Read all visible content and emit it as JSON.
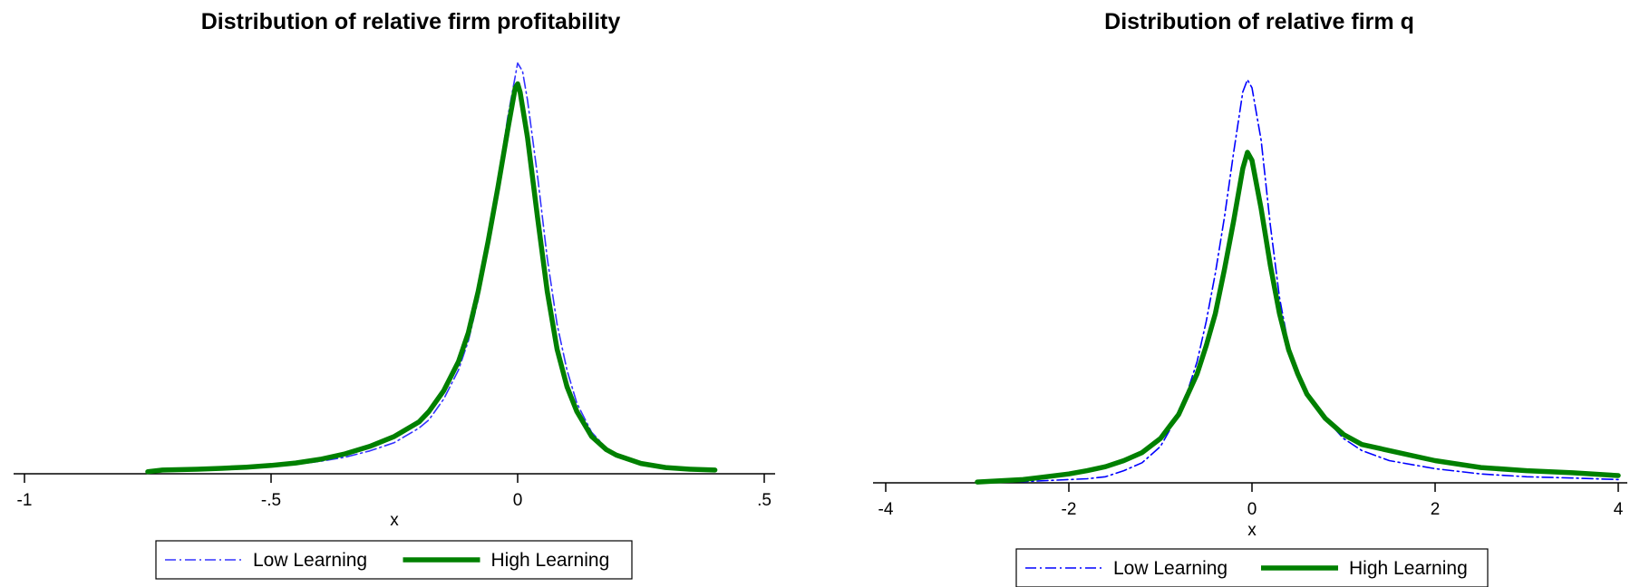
{
  "chart_data": [
    {
      "type": "line",
      "title": "Distribution of relative firm profitability",
      "xlabel": "x",
      "ylabel": "",
      "xlim": [
        -1.0,
        0.5
      ],
      "ylim": [
        0,
        1
      ],
      "xticks": [
        -1,
        -0.5,
        0,
        0.5
      ],
      "xtick_labels": [
        "-1",
        "-.5",
        "0",
        ".5"
      ],
      "y_axis_shown": false,
      "grid": false,
      "legend_position": "bottom",
      "series": [
        {
          "name": "Low Learning",
          "color": "#3333ff",
          "style": "dash-dot-thin",
          "points": [
            [
              -0.75,
              0.005
            ],
            [
              -0.7,
              0.007
            ],
            [
              -0.65,
              0.009
            ],
            [
              -0.6,
              0.011
            ],
            [
              -0.55,
              0.014
            ],
            [
              -0.5,
              0.018
            ],
            [
              -0.45,
              0.023
            ],
            [
              -0.4,
              0.03
            ],
            [
              -0.35,
              0.04
            ],
            [
              -0.3,
              0.055
            ],
            [
              -0.25,
              0.075
            ],
            [
              -0.2,
              0.11
            ],
            [
              -0.18,
              0.13
            ],
            [
              -0.15,
              0.18
            ],
            [
              -0.12,
              0.25
            ],
            [
              -0.1,
              0.32
            ],
            [
              -0.08,
              0.42
            ],
            [
              -0.06,
              0.55
            ],
            [
              -0.04,
              0.7
            ],
            [
              -0.02,
              0.86
            ],
            [
              0.0,
              0.99
            ],
            [
              0.01,
              0.97
            ],
            [
              0.02,
              0.9
            ],
            [
              0.04,
              0.72
            ],
            [
              0.06,
              0.52
            ],
            [
              0.08,
              0.36
            ],
            [
              0.1,
              0.25
            ],
            [
              0.12,
              0.17
            ],
            [
              0.15,
              0.1
            ],
            [
              0.18,
              0.062
            ],
            [
              0.2,
              0.047
            ],
            [
              0.25,
              0.026
            ],
            [
              0.3,
              0.016
            ],
            [
              0.35,
              0.012
            ],
            [
              0.4,
              0.01
            ]
          ]
        },
        {
          "name": "High Learning",
          "color": "#008000",
          "style": "solid-thick",
          "points": [
            [
              -0.75,
              0.005
            ],
            [
              -0.72,
              0.009
            ],
            [
              -0.65,
              0.011
            ],
            [
              -0.6,
              0.013
            ],
            [
              -0.55,
              0.016
            ],
            [
              -0.5,
              0.02
            ],
            [
              -0.45,
              0.026
            ],
            [
              -0.4,
              0.035
            ],
            [
              -0.35,
              0.048
            ],
            [
              -0.3,
              0.066
            ],
            [
              -0.25,
              0.09
            ],
            [
              -0.2,
              0.125
            ],
            [
              -0.18,
              0.15
            ],
            [
              -0.15,
              0.2
            ],
            [
              -0.12,
              0.27
            ],
            [
              -0.1,
              0.34
            ],
            [
              -0.08,
              0.44
            ],
            [
              -0.06,
              0.56
            ],
            [
              -0.04,
              0.69
            ],
            [
              -0.02,
              0.83
            ],
            [
              -0.005,
              0.93
            ],
            [
              0.0,
              0.94
            ],
            [
              0.005,
              0.92
            ],
            [
              0.02,
              0.81
            ],
            [
              0.04,
              0.62
            ],
            [
              0.06,
              0.44
            ],
            [
              0.08,
              0.3
            ],
            [
              0.1,
              0.21
            ],
            [
              0.12,
              0.15
            ],
            [
              0.15,
              0.09
            ],
            [
              0.18,
              0.058
            ],
            [
              0.2,
              0.045
            ],
            [
              0.25,
              0.025
            ],
            [
              0.3,
              0.015
            ],
            [
              0.35,
              0.011
            ],
            [
              0.4,
              0.009
            ]
          ]
        }
      ]
    },
    {
      "type": "line",
      "title": "Distribution of relative firm q",
      "xlabel": "x",
      "ylabel": "",
      "xlim": [
        -4,
        4
      ],
      "ylim": [
        0,
        1
      ],
      "xticks": [
        -4,
        -2,
        0,
        2,
        4
      ],
      "xtick_labels": [
        "-4",
        "-2",
        "0",
        "2",
        "4"
      ],
      "y_axis_shown": false,
      "grid": false,
      "legend_position": "bottom",
      "series": [
        {
          "name": "Low Learning",
          "color": "#0000ff",
          "style": "dash-dot-thin",
          "points": [
            [
              -3.0,
              0.002
            ],
            [
              -2.5,
              0.003
            ],
            [
              -2.0,
              0.008
            ],
            [
              -1.8,
              0.01
            ],
            [
              -1.6,
              0.015
            ],
            [
              -1.4,
              0.03
            ],
            [
              -1.2,
              0.05
            ],
            [
              -1.0,
              0.09
            ],
            [
              -0.9,
              0.13
            ],
            [
              -0.8,
              0.18
            ],
            [
              -0.7,
              0.23
            ],
            [
              -0.6,
              0.3
            ],
            [
              -0.5,
              0.4
            ],
            [
              -0.4,
              0.52
            ],
            [
              -0.3,
              0.66
            ],
            [
              -0.2,
              0.82
            ],
            [
              -0.1,
              0.97
            ],
            [
              -0.05,
              1.0
            ],
            [
              0.0,
              0.98
            ],
            [
              0.1,
              0.85
            ],
            [
              0.2,
              0.64
            ],
            [
              0.3,
              0.46
            ],
            [
              0.4,
              0.34
            ],
            [
              0.5,
              0.26
            ],
            [
              0.6,
              0.22
            ],
            [
              0.8,
              0.16
            ],
            [
              1.0,
              0.11
            ],
            [
              1.2,
              0.08
            ],
            [
              1.5,
              0.055
            ],
            [
              2.0,
              0.035
            ],
            [
              2.5,
              0.022
            ],
            [
              3.0,
              0.015
            ],
            [
              3.5,
              0.012
            ],
            [
              4.0,
              0.008
            ]
          ]
        },
        {
          "name": "High Learning",
          "color": "#008000",
          "style": "solid-thick",
          "points": [
            [
              -3.0,
              0.002
            ],
            [
              -2.5,
              0.008
            ],
            [
              -2.0,
              0.022
            ],
            [
              -1.8,
              0.03
            ],
            [
              -1.6,
              0.04
            ],
            [
              -1.4,
              0.055
            ],
            [
              -1.2,
              0.075
            ],
            [
              -1.0,
              0.11
            ],
            [
              -0.9,
              0.14
            ],
            [
              -0.8,
              0.17
            ],
            [
              -0.7,
              0.22
            ],
            [
              -0.6,
              0.27
            ],
            [
              -0.5,
              0.34
            ],
            [
              -0.4,
              0.42
            ],
            [
              -0.3,
              0.53
            ],
            [
              -0.2,
              0.65
            ],
            [
              -0.1,
              0.78
            ],
            [
              -0.05,
              0.82
            ],
            [
              0.0,
              0.8
            ],
            [
              0.1,
              0.68
            ],
            [
              0.2,
              0.54
            ],
            [
              0.3,
              0.42
            ],
            [
              0.4,
              0.33
            ],
            [
              0.5,
              0.27
            ],
            [
              0.6,
              0.22
            ],
            [
              0.8,
              0.16
            ],
            [
              1.0,
              0.12
            ],
            [
              1.2,
              0.095
            ],
            [
              1.5,
              0.08
            ],
            [
              2.0,
              0.055
            ],
            [
              2.5,
              0.038
            ],
            [
              3.0,
              0.03
            ],
            [
              3.5,
              0.025
            ],
            [
              4.0,
              0.018
            ]
          ]
        }
      ]
    }
  ]
}
